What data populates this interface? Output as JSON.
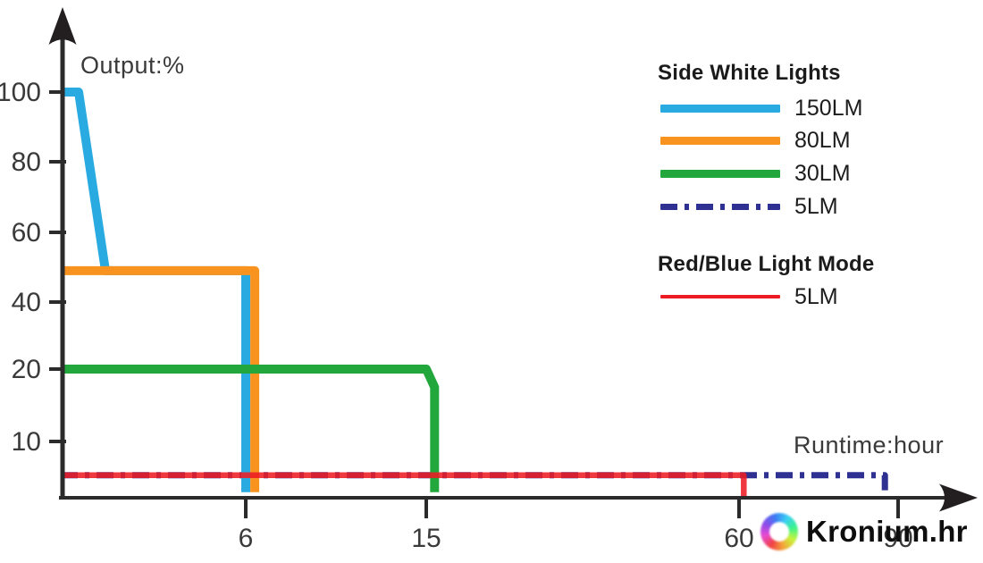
{
  "axis_titles": {
    "y": "Output:%",
    "x": "Runtime:hour"
  },
  "legend": {
    "group1_title": "Side White Lights",
    "group1_items": [
      {
        "label": "150LM",
        "color": "#29ABE2",
        "style": "solid",
        "thickness": 9
      },
      {
        "label": "80LM",
        "color": "#F7931E",
        "style": "solid",
        "thickness": 9
      },
      {
        "label": "30LM",
        "color": "#22A73C",
        "style": "solid",
        "thickness": 9
      },
      {
        "label": "5LM",
        "color": "#2E3192",
        "style": "dashdot",
        "thickness": 7
      }
    ],
    "group2_title": "Red/Blue Light Mode",
    "group2_items": [
      {
        "label": "5LM",
        "color": "#ED1C24",
        "style": "solid",
        "thickness": 4
      }
    ]
  },
  "watermark": {
    "text": "Kronium.hr"
  },
  "chart_data": {
    "type": "line",
    "title": "",
    "xlabel": "Runtime:hour",
    "ylabel": "Output:%",
    "x_ticks": [
      6,
      15,
      60,
      90
    ],
    "y_ticks": [
      100,
      80,
      60,
      40,
      20,
      10
    ],
    "x_axis_note": "non-linear schematic runtime axis, hours",
    "y_axis_note": "output percent, schematic spacing",
    "grid": false,
    "legend_position": "top-right",
    "series": [
      {
        "name": "side-white-5lm",
        "label": "5LM",
        "color": "#2E3192",
        "style": "dashdot",
        "width": 7,
        "points": [
          [
            0,
            4
          ],
          [
            87.5,
            4
          ],
          [
            87.5,
            0.7
          ]
        ]
      },
      {
        "name": "side-white-150lm",
        "label": "150LM",
        "color": "#29ABE2",
        "style": "solid",
        "width": 10,
        "points": [
          [
            0,
            100
          ],
          [
            0.58,
            100
          ],
          [
            1.45,
            49
          ],
          [
            6,
            49
          ],
          [
            6,
            1
          ]
        ]
      },
      {
        "name": "side-white-80lm",
        "label": "80LM",
        "color": "#F7931E",
        "style": "solid",
        "width": 10,
        "points": [
          [
            0,
            49
          ],
          [
            6.45,
            49
          ],
          [
            6.45,
            1
          ]
        ]
      },
      {
        "name": "side-white-30lm",
        "label": "30LM",
        "color": "#22A73C",
        "style": "solid",
        "width": 10,
        "points": [
          [
            0,
            20
          ],
          [
            15,
            20
          ],
          [
            16.2,
            17.5
          ],
          [
            16.2,
            1
          ]
        ]
      },
      {
        "name": "red-blue-5lm",
        "label": "5LM",
        "color": "#ED1C24",
        "style": "solid",
        "width": 6.5,
        "opacity": 0.88,
        "points": [
          [
            0,
            4
          ],
          [
            60.9,
            4
          ],
          [
            60.9,
            0.3
          ]
        ]
      }
    ]
  }
}
